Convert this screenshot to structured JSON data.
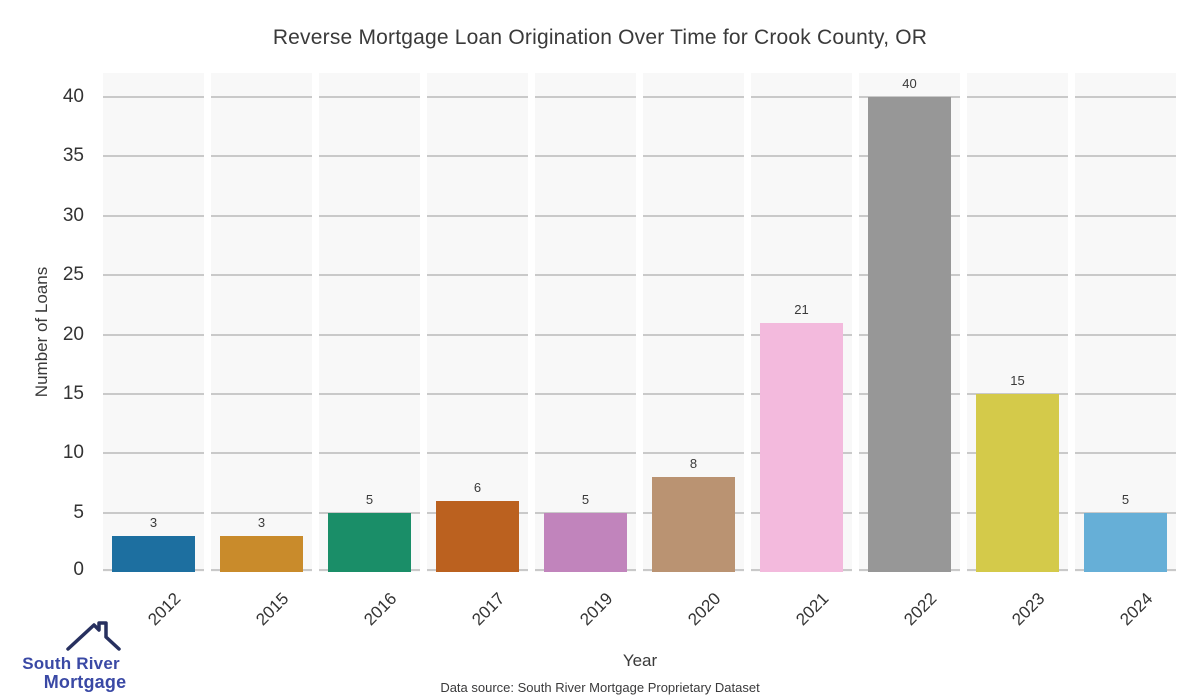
{
  "title": "Reverse Mortgage Loan Origination Over Time for Crook County, OR",
  "chart_data": {
    "type": "bar",
    "categories": [
      "2012",
      "2015",
      "2016",
      "2017",
      "2019",
      "2020",
      "2021",
      "2022",
      "2023",
      "2024"
    ],
    "values": [
      3,
      3,
      5,
      6,
      5,
      8,
      21,
      40,
      15,
      5
    ],
    "bar_colors": [
      "#1d6fa0",
      "#c98b2b",
      "#1a8e68",
      "#bb611f",
      "#c184bc",
      "#ba9372",
      "#f3badd",
      "#979797",
      "#d4ca4a",
      "#66afd7"
    ],
    "title": "Reverse Mortgage Loan Origination Over Time for Crook County, OR",
    "xlabel": "Year",
    "ylabel": "Number of Loans",
    "ylim": [
      0,
      42
    ],
    "yticks": [
      0,
      5,
      10,
      15,
      20,
      25,
      30,
      35,
      40
    ],
    "grid": "horizontal",
    "legend": "none",
    "value_labels_shown": true,
    "plot_background": "#f8f8f8",
    "gridline_color": "#c9c9c9"
  },
  "footer": {
    "source_text": "Data source: South River Mortgage Proprietary Dataset"
  },
  "logo": {
    "line1": "South River",
    "line2": "Mortgage",
    "text_color": "#3a49a5",
    "roof_color": "#27305f",
    "icon": "house-roof-icon"
  }
}
